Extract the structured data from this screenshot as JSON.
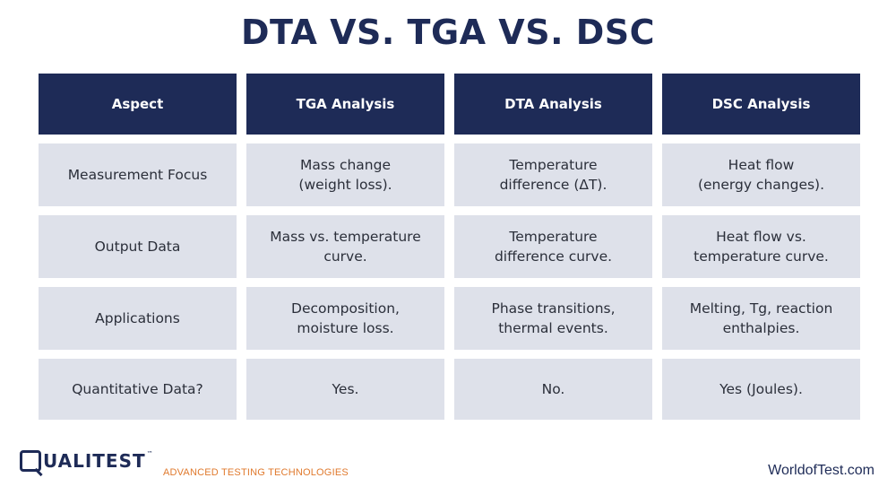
{
  "title": "DTA VS. TGA VS. DSC",
  "table": {
    "headers": [
      "Aspect",
      "TGA Analysis",
      "DTA Analysis",
      "DSC Analysis"
    ],
    "rows": [
      [
        "Measurement Focus",
        "Mass change\n(weight loss).",
        "Temperature\ndifference (ΔT).",
        "Heat flow\n(energy changes)."
      ],
      [
        "Output Data",
        "Mass vs. temperature\ncurve.",
        "Temperature\ndifference curve.",
        "Heat flow vs.\ntemperature curve."
      ],
      [
        "Applications",
        "Decomposition,\nmoisture loss.",
        "Phase transitions,\nthermal events.",
        "Melting, Tg, reaction\nenthalpies."
      ],
      [
        "Quantitative Data?",
        "Yes.",
        "No.",
        "Yes (Joules)."
      ]
    ]
  },
  "footer": {
    "logo_text": "UALITEST",
    "logo_tm": "™",
    "tagline": "ADVANCED TESTING TECHNOLOGIES",
    "site": "WorldofTest.com"
  },
  "colors": {
    "header_bg": "#1e2b57",
    "cell_bg": "#dee1ea",
    "accent": "#e07a2e"
  }
}
